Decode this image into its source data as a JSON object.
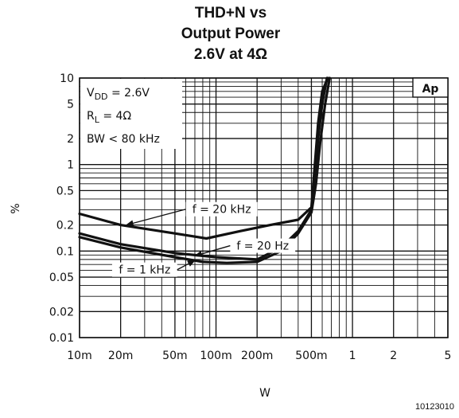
{
  "chart_data": {
    "type": "line",
    "title": [
      "THD+N vs",
      "Output Power",
      "2.6V at 4Ω"
    ],
    "xlabel": "W",
    "ylabel": "%",
    "xscale": "log",
    "yscale": "log",
    "xlim": [
      0.01,
      5
    ],
    "ylim": [
      0.01,
      10
    ],
    "grid": true,
    "x_ticks": [
      {
        "value": 0.01,
        "label": "10m"
      },
      {
        "value": 0.02,
        "label": "20m"
      },
      {
        "value": 0.05,
        "label": "50m"
      },
      {
        "value": 0.1,
        "label": "100m"
      },
      {
        "value": 0.2,
        "label": "200m"
      },
      {
        "value": 0.5,
        "label": "500m"
      },
      {
        "value": 1,
        "label": "1"
      },
      {
        "value": 2,
        "label": "2"
      },
      {
        "value": 5,
        "label": "5"
      }
    ],
    "y_ticks": [
      {
        "value": 10,
        "label": "10"
      },
      {
        "value": 5,
        "label": "5"
      },
      {
        "value": 2,
        "label": "2"
      },
      {
        "value": 1,
        "label": "1"
      },
      {
        "value": 0.5,
        "label": "0.5"
      },
      {
        "value": 0.2,
        "label": "0.2"
      },
      {
        "value": 0.1,
        "label": "0.1"
      },
      {
        "value": 0.05,
        "label": "0.05"
      },
      {
        "value": 0.02,
        "label": "0.02"
      },
      {
        "value": 0.01,
        "label": "0.01"
      }
    ],
    "conditions": {
      "vdd": {
        "prefix": "V",
        "sub": "DD",
        "value": " = 2.6V"
      },
      "rl": {
        "prefix": "R",
        "sub": "L",
        "value": " = 4Ω"
      },
      "bw": "BW < 80 kHz"
    },
    "badge": "Ap",
    "series": [
      {
        "name": "f = 20 kHz",
        "x": [
          0.01,
          0.02,
          0.05,
          0.085,
          0.15,
          0.25,
          0.4,
          0.5,
          0.53,
          0.56,
          0.6,
          0.66
        ],
        "y": [
          0.27,
          0.2,
          0.16,
          0.14,
          0.17,
          0.2,
          0.23,
          0.32,
          1.0,
          3.0,
          7.0,
          10
        ]
      },
      {
        "name": "f = 20 Hz",
        "x": [
          0.01,
          0.02,
          0.05,
          0.1,
          0.2,
          0.3,
          0.4,
          0.5,
          0.53,
          0.56,
          0.6,
          0.65
        ],
        "y": [
          0.16,
          0.12,
          0.095,
          0.085,
          0.08,
          0.11,
          0.17,
          0.3,
          0.7,
          2.0,
          5.0,
          10
        ]
      },
      {
        "name": "f = 1 kHz",
        "x": [
          0.01,
          0.02,
          0.05,
          0.08,
          0.12,
          0.2,
          0.3,
          0.4,
          0.5,
          0.54,
          0.58,
          0.63,
          0.68
        ],
        "y": [
          0.145,
          0.11,
          0.085,
          0.075,
          0.073,
          0.075,
          0.1,
          0.16,
          0.28,
          0.6,
          1.8,
          5.0,
          10
        ]
      }
    ],
    "series_labels": [
      {
        "text": "f = 20 kHz",
        "at": [
          0.11,
          0.28
        ],
        "arrow_to": [
          0.022,
          0.2
        ]
      },
      {
        "text": "f = 20 Hz",
        "at": [
          0.22,
          0.106
        ],
        "arrow_to": [
          0.07,
          0.088
        ]
      },
      {
        "text": "f = 1 kHz",
        "at": [
          0.03,
          0.056
        ],
        "arrow_to": [
          0.07,
          0.078
        ]
      }
    ]
  },
  "footnote": "10123010"
}
